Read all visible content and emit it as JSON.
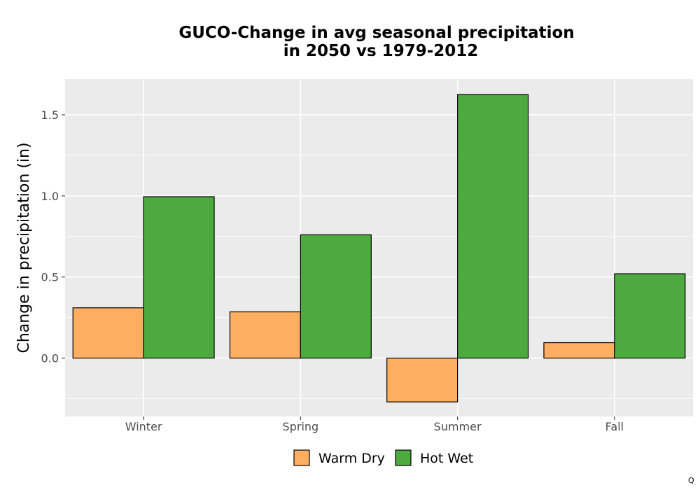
{
  "chart_data": {
    "type": "bar",
    "title_lines": [
      "GUCO-Change in avg seasonal precipitation",
      "in 2050 vs 1979-2012"
    ],
    "xlabel": "",
    "ylabel": "Change in precipitation (in)",
    "categories": [
      "Winter",
      "Spring",
      "Summer",
      "Fall"
    ],
    "series": [
      {
        "name": "Warm Dry",
        "color": "#fdae61",
        "values": [
          0.31,
          0.285,
          -0.27,
          0.095
        ]
      },
      {
        "name": "Hot Wet",
        "color": "#4daa3f",
        "values": [
          0.995,
          0.76,
          1.625,
          0.52
        ]
      }
    ],
    "ylim": [
      -0.36,
      1.72
    ],
    "yticks": [
      0.0,
      0.5,
      1.0,
      1.5
    ],
    "ytick_labels": [
      "0.0",
      "0.5",
      "1.0",
      "1.5"
    ],
    "grid": true,
    "legend_position": "bottom"
  },
  "corner_mark": "Q"
}
